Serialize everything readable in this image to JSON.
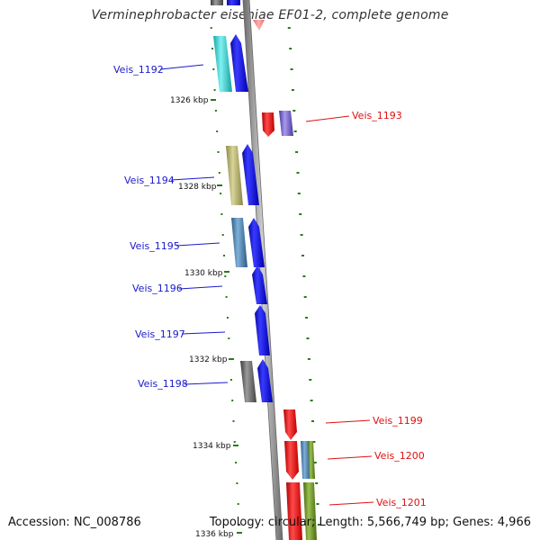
{
  "title": "Verminephrobacter eiseniae EF01-2, complete genome",
  "footer": {
    "accession": "Accession: NC_008786",
    "summary": "Topology: circular; Length: 5,566,749 bp; Genes: 4,966"
  },
  "colors": {
    "backbone": "#999999",
    "tick": "#2a7a1a",
    "forward_label": "#1a1acc",
    "reverse_label": "#dd1111"
  },
  "kbp_ticks": [
    "1326 kbp",
    "1328 kbp",
    "1330 kbp",
    "1332 kbp",
    "1334 kbp",
    "1336 kbp"
  ],
  "genes_forward": [
    {
      "label": "Veis_1192"
    },
    {
      "label": "Veis_1194"
    },
    {
      "label": "Veis_1195"
    },
    {
      "label": "Veis_1196"
    },
    {
      "label": "Veis_1197"
    },
    {
      "label": "Veis_1198"
    }
  ],
  "genes_reverse": [
    {
      "label": "Veis_1193"
    },
    {
      "label": "Veis_1199"
    },
    {
      "label": "Veis_1200"
    },
    {
      "label": "Veis_1201"
    }
  ]
}
